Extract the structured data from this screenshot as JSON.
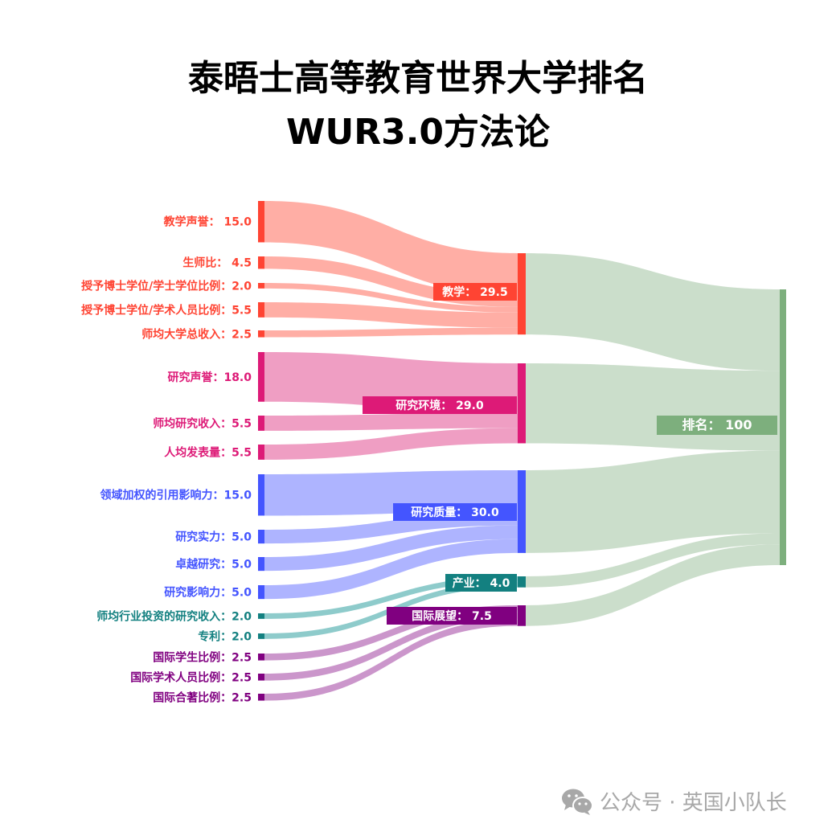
{
  "title_line1": "泰晤士高等教育世界大学排名",
  "title_line2": "WUR3.0方法论",
  "watermark": {
    "icon": "wechat-icon",
    "text": "公众号 · 英国小队长"
  },
  "chart_data": {
    "type": "sankey",
    "sources": [
      {
        "name": "教学声誉",
        "value": 15.0,
        "label": "教学声誉：  15.0",
        "target": 0
      },
      {
        "name": "生师比",
        "value": 4.5,
        "label": "生师比：  4.5",
        "target": 0
      },
      {
        "name": "授予博士学位/学士学位比例",
        "value": 2.0,
        "label": "授予博士学位/学士学位比例：2.0",
        "target": 0
      },
      {
        "name": "授予博士学位/学术人员比例",
        "value": 5.5,
        "label": "授予博士学位/学术人员比例：5.5",
        "target": 0
      },
      {
        "name": "师均大学总收入",
        "value": 2.5,
        "label": "师均大学总收入：2.5",
        "target": 0
      },
      {
        "name": "研究声誉",
        "value": 18.0,
        "label": "研究声誉：18.0",
        "target": 1
      },
      {
        "name": "师均研究收入",
        "value": 5.5,
        "label": "师均研究收入：5.5",
        "target": 1
      },
      {
        "name": "人均发表量",
        "value": 5.5,
        "label": "人均发表量：5.5",
        "target": 1
      },
      {
        "name": "领域加权的引用影响力",
        "value": 15.0,
        "label": "领域加权的引用影响力：15.0",
        "target": 2
      },
      {
        "name": "研究实力",
        "value": 5.0,
        "label": "研究实力：5.0",
        "target": 2
      },
      {
        "name": "卓越研究",
        "value": 5.0,
        "label": "卓越研究：5.0",
        "target": 2
      },
      {
        "name": "研究影响力",
        "value": 5.0,
        "label": "研究影响力：5.0",
        "target": 2
      },
      {
        "name": "师均行业投资的研究收入",
        "value": 2.0,
        "label": "师均行业投资的研究收入：2.0",
        "target": 3
      },
      {
        "name": "专利",
        "value": 2.0,
        "label": "专利：2.0",
        "target": 3
      },
      {
        "name": "国际学生比例",
        "value": 2.5,
        "label": "国际学生比例：2.5",
        "target": 4
      },
      {
        "name": "国际学术人员比例",
        "value": 2.5,
        "label": "国际学术人员比例：2.5",
        "target": 4
      },
      {
        "name": "国际合著比例",
        "value": 2.5,
        "label": "国际合著比例：2.5",
        "target": 4
      }
    ],
    "pillars": [
      {
        "name": "教学",
        "value": 29.5,
        "label": "教学：  29.5",
        "color": "#ff4433",
        "flow_color": "#ffaaa0"
      },
      {
        "name": "研究环境",
        "value": 29.0,
        "label": "研究环境：  29.0",
        "color": "#dd1a77",
        "flow_color": "#ee99c0"
      },
      {
        "name": "研究质量",
        "value": 30.0,
        "label": "研究质量：  30.0",
        "color": "#4455ff",
        "flow_color": "#aab0ff"
      },
      {
        "name": "产业",
        "value": 4.0,
        "label": "产业：  4.0",
        "color": "#138080",
        "flow_color": "#88c8c8"
      },
      {
        "name": "国际展望",
        "value": 7.5,
        "label": "国际展望：  7.5",
        "color": "#800080",
        "flow_color": "#c890c8"
      }
    ],
    "total": {
      "name": "排名",
      "value": 100,
      "label": "排名：  100",
      "color": "#7daf7d",
      "flow_color": "#c8dcc8"
    }
  }
}
